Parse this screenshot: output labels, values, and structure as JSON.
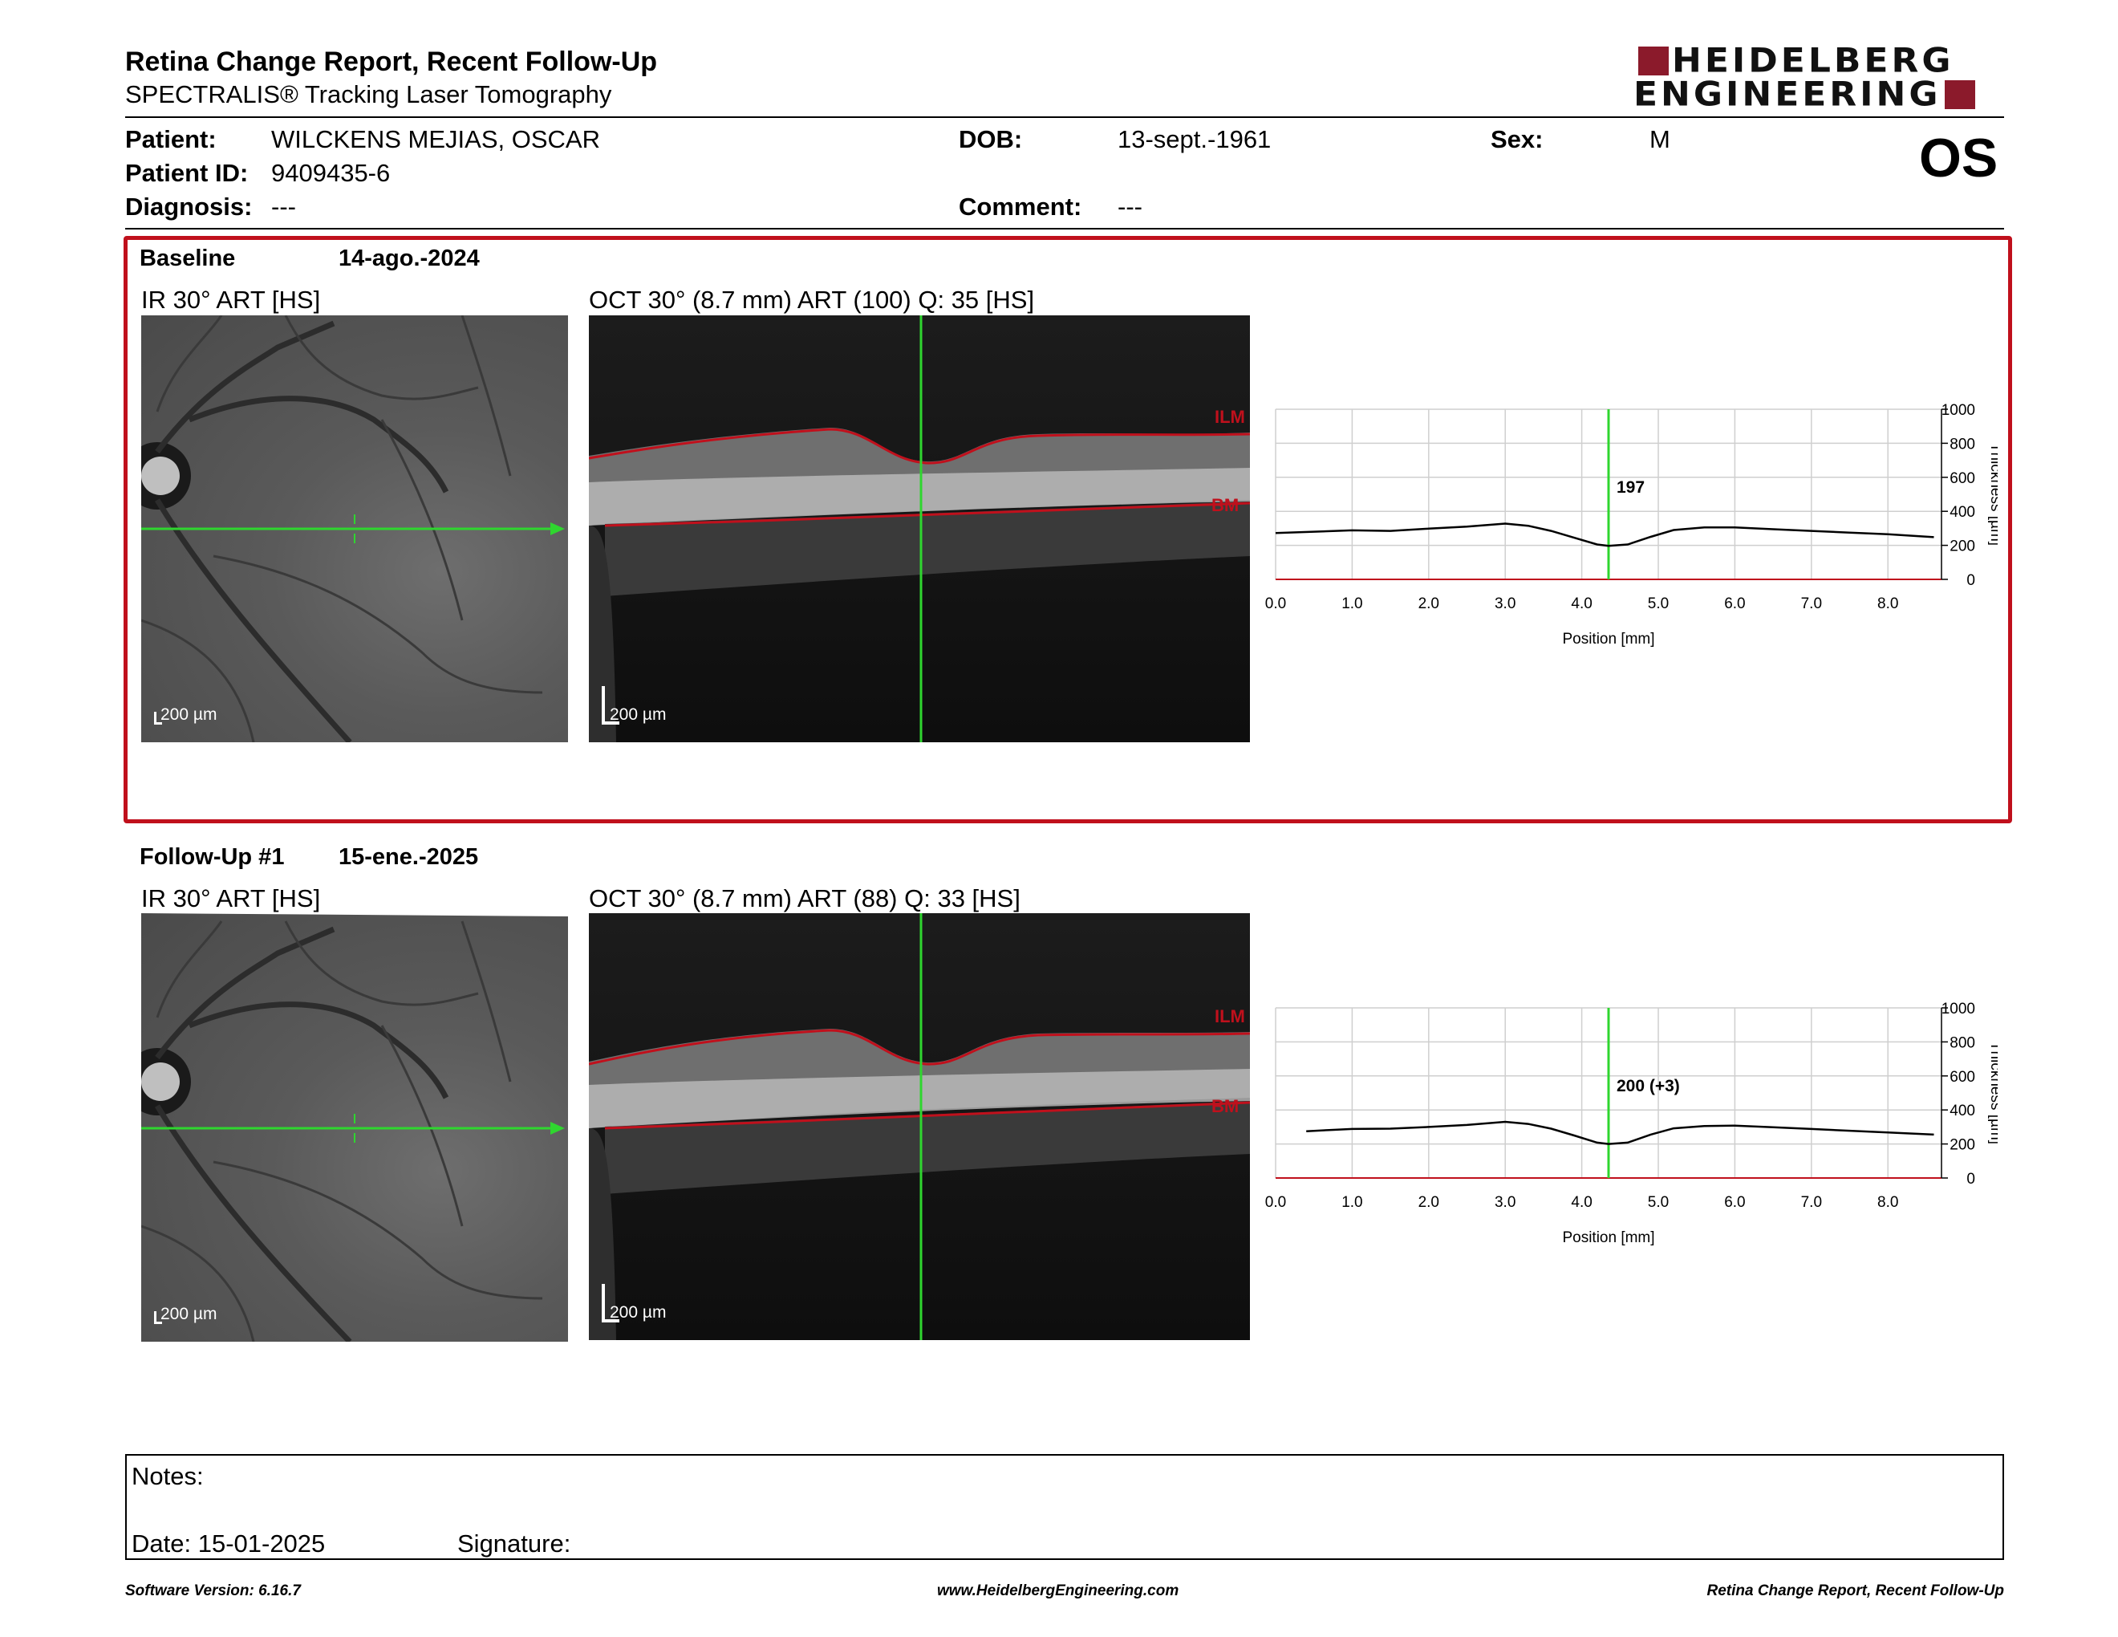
{
  "header": {
    "title": "Retina Change Report, Recent Follow-Up",
    "subtitle": "SPECTRALIS® Tracking Laser Tomography",
    "logo_line1": "HEIDELBERG",
    "logo_line2": "ENGINEERING",
    "eye": "OS"
  },
  "patient": {
    "patient_label": "Patient:",
    "patient_value": "WILCKENS MEJIAS, OSCAR",
    "id_label": "Patient ID:",
    "id_value": "9409435-6",
    "diagnosis_label": "Diagnosis:",
    "diagnosis_value": "---",
    "dob_label": "DOB:",
    "dob_value": "13-sept.-1961",
    "comment_label": "Comment:",
    "comment_value": "---",
    "sex_label": "Sex:",
    "sex_value": "M"
  },
  "baseline": {
    "label": "Baseline",
    "date": "14-ago.-2024",
    "ir_label": "IR 30° ART [HS]",
    "oct_label": "OCT 30° (8.7 mm) ART (100) Q: 35 [HS]",
    "ir_scale": "200 µm",
    "oct_scale": "200 µm",
    "ilm": "ILM",
    "bm": "BM"
  },
  "followup": {
    "label": "Follow-Up #1",
    "date": "15-ene.-2025",
    "ir_label": "IR 30° ART [HS]",
    "oct_label": "OCT 30° (8.7 mm) ART (88) Q: 33 [HS]",
    "ir_scale": "200 µm",
    "oct_scale": "200 µm",
    "ilm": "ILM",
    "bm": "BM"
  },
  "notes": {
    "notes_label": "Notes:",
    "date_text": "Date: 15-01-2025",
    "signature_label": "Signature:"
  },
  "footer": {
    "left": "Software Version: 6.16.7",
    "center": "www.HeidelbergEngineering.com",
    "right": "Retina Change Report, Recent Follow-Up"
  },
  "colors": {
    "accent_red": "#c0101c",
    "logo_red": "#8b1a2b",
    "marker_green": "#2fd62f"
  },
  "chart_data": [
    {
      "type": "line",
      "xlabel": "Position [mm]",
      "ylabel": "Thickness [µm]",
      "xlim": [
        0,
        8.7
      ],
      "ylim": [
        0,
        1000
      ],
      "xticks": [
        "0.0",
        "1.0",
        "2.0",
        "3.0",
        "4.0",
        "5.0",
        "6.0",
        "7.0",
        "8.0"
      ],
      "yticks": [
        "0",
        "200",
        "400",
        "600",
        "800",
        "1000"
      ],
      "marker_x": 4.35,
      "marker_label": "197",
      "grid": true,
      "series": [
        {
          "x": [
            0.0,
            0.5,
            1.0,
            1.5,
            2.0,
            2.5,
            3.0,
            3.3,
            3.6,
            3.9,
            4.2,
            4.35,
            4.6,
            4.9,
            5.2,
            5.6,
            6.0,
            6.5,
            7.0,
            7.5,
            8.0,
            8.6
          ],
          "y": [
            272,
            280,
            288,
            285,
            298,
            310,
            328,
            315,
            285,
            245,
            205,
            197,
            205,
            250,
            290,
            305,
            305,
            295,
            285,
            275,
            265,
            248
          ]
        }
      ]
    },
    {
      "type": "line",
      "xlabel": "Position [mm]",
      "ylabel": "Thickness [µm]",
      "xlim": [
        0,
        8.7
      ],
      "ylim": [
        0,
        1000
      ],
      "xticks": [
        "0.0",
        "1.0",
        "2.0",
        "3.0",
        "4.0",
        "5.0",
        "6.0",
        "7.0",
        "8.0"
      ],
      "yticks": [
        "0",
        "200",
        "400",
        "600",
        "800",
        "1000"
      ],
      "marker_x": 4.35,
      "marker_label": "200 (+3)",
      "grid": true,
      "series": [
        {
          "x": [
            0.4,
            0.7,
            1.0,
            1.5,
            2.0,
            2.5,
            3.0,
            3.3,
            3.6,
            3.9,
            4.2,
            4.35,
            4.6,
            4.9,
            5.2,
            5.6,
            6.0,
            6.5,
            7.0,
            7.5,
            8.0,
            8.6
          ],
          "y": [
            275,
            282,
            288,
            290,
            300,
            312,
            330,
            318,
            290,
            250,
            208,
            200,
            208,
            255,
            292,
            305,
            308,
            298,
            288,
            278,
            268,
            255
          ]
        }
      ]
    }
  ]
}
